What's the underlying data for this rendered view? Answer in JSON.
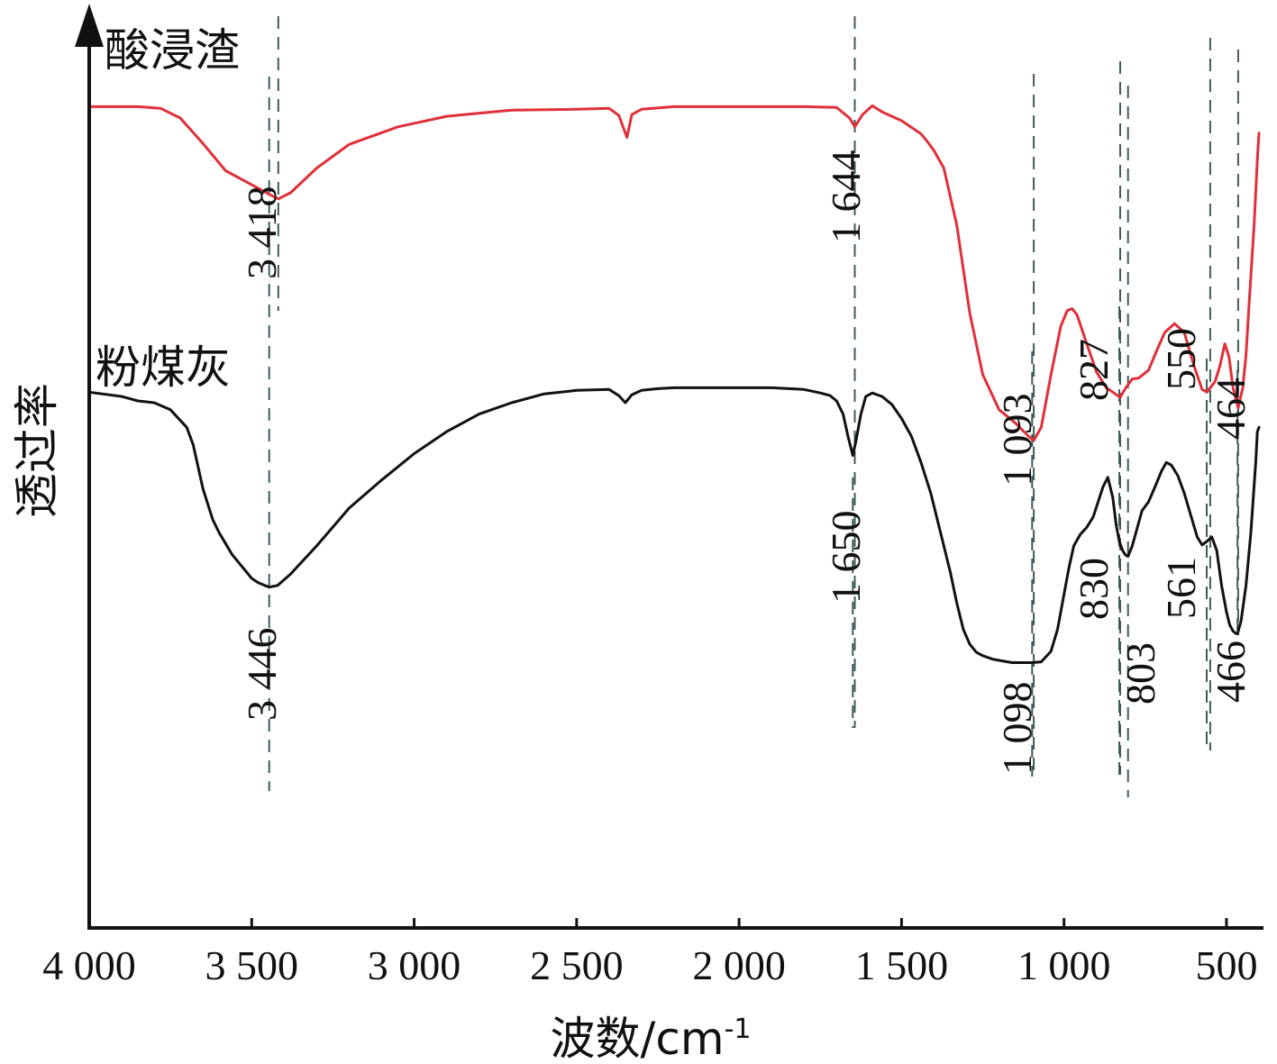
{
  "chart_data": {
    "type": "line",
    "xlabel": "波数/cm",
    "xlabel_sup": "-1",
    "ylabel": "透过率",
    "xlim": [
      4000,
      400
    ],
    "x_reversed": true,
    "x_ticks": [
      {
        "value": 4000,
        "label": "4 000"
      },
      {
        "value": 3500,
        "label": "3 500"
      },
      {
        "value": 3000,
        "label": "3 000"
      },
      {
        "value": 2500,
        "label": "2 500"
      },
      {
        "value": 2000,
        "label": "2 000"
      },
      {
        "value": 1500,
        "label": "1 500"
      },
      {
        "value": 1000,
        "label": "1 000"
      },
      {
        "value": 500,
        "label": "500"
      }
    ],
    "ylim": [
      0,
      100
    ],
    "y_ticks_shown": false,
    "grid": false,
    "legend": "none",
    "series": [
      {
        "name": "酸浸渣",
        "color": "#e0303a",
        "x": [
          4000,
          3850,
          3780,
          3720,
          3650,
          3580,
          3500,
          3450,
          3418,
          3380,
          3300,
          3200,
          3050,
          2900,
          2700,
          2500,
          2400,
          2370,
          2345,
          2330,
          2300,
          2200,
          2000,
          1800,
          1700,
          1660,
          1644,
          1620,
          1590,
          1560,
          1500,
          1440,
          1420,
          1400,
          1370,
          1330,
          1290,
          1250,
          1200,
          1150,
          1110,
          1093,
          1070,
          1040,
          1010,
          990,
          975,
          960,
          930,
          900,
          870,
          850,
          827,
          810,
          790,
          770,
          740,
          715,
          690,
          660,
          630,
          600,
          575,
          560,
          550,
          535,
          520,
          505,
          492,
          480,
          464,
          450,
          440,
          430,
          415,
          405,
          400
        ],
        "y": [
          93.5,
          93.5,
          93.3,
          92.2,
          89.3,
          86.2,
          84.6,
          83.6,
          83.0,
          83.7,
          86.5,
          89.2,
          91.2,
          92.4,
          93.1,
          93.2,
          93.3,
          92.5,
          90.0,
          92.6,
          93.2,
          93.5,
          93.5,
          93.5,
          93.4,
          92.2,
          91.2,
          92.6,
          93.6,
          92.9,
          91.9,
          90.4,
          89.5,
          88.5,
          86.5,
          80.0,
          70.0,
          63.0,
          59.0,
          57.5,
          56.0,
          55.5,
          57.0,
          63.0,
          68.5,
          70.3,
          70.5,
          69.8,
          66.5,
          63.3,
          61.5,
          61.0,
          60.4,
          61.5,
          62.5,
          62.6,
          63.5,
          65.7,
          67.8,
          68.8,
          67.8,
          64.0,
          61.3,
          61.0,
          61.5,
          62.2,
          64.0,
          66.5,
          65.0,
          61.5,
          59.2,
          61.5,
          65.2,
          71.3,
          80.0,
          87.5,
          90.5
        ]
      },
      {
        "name": "粉煤灰",
        "color": "#111111",
        "x": [
          4000,
          3900,
          3850,
          3800,
          3750,
          3700,
          3680,
          3650,
          3620,
          3600,
          3560,
          3520,
          3500,
          3480,
          3460,
          3446,
          3420,
          3380,
          3300,
          3200,
          3100,
          3000,
          2900,
          2800,
          2700,
          2600,
          2500,
          2400,
          2370,
          2350,
          2330,
          2300,
          2250,
          2200,
          2100,
          2000,
          1900,
          1800,
          1750,
          1720,
          1700,
          1680,
          1665,
          1650,
          1640,
          1625,
          1610,
          1590,
          1560,
          1530,
          1500,
          1470,
          1440,
          1410,
          1380,
          1350,
          1330,
          1310,
          1290,
          1270,
          1250,
          1220,
          1190,
          1160,
          1130,
          1098,
          1070,
          1040,
          1020,
          1000,
          985,
          970,
          950,
          930,
          910,
          895,
          880,
          865,
          850,
          840,
          830,
          820,
          812,
          803,
          790,
          775,
          760,
          740,
          720,
          700,
          685,
          670,
          650,
          630,
          610,
          590,
          575,
          561,
          545,
          530,
          515,
          500,
          490,
          480,
          470,
          466,
          455,
          440,
          425,
          410,
          405,
          400
        ],
        "y": [
          61.0,
          60.5,
          60.0,
          59.8,
          59.0,
          57.0,
          55.0,
          50.0,
          46.5,
          45.0,
          42.5,
          40.7,
          39.8,
          39.3,
          39.0,
          38.8,
          39.0,
          40.3,
          43.5,
          47.8,
          51.0,
          54.0,
          56.5,
          58.5,
          59.8,
          60.8,
          61.2,
          61.3,
          60.6,
          59.8,
          60.7,
          61.2,
          61.4,
          61.5,
          61.5,
          61.5,
          61.5,
          61.3,
          60.9,
          60.6,
          60.0,
          58.5,
          56.0,
          53.8,
          55.5,
          58.5,
          60.5,
          60.9,
          60.5,
          59.6,
          58.0,
          56.0,
          53.0,
          49.5,
          45.0,
          40.5,
          37.0,
          34.0,
          32.3,
          31.4,
          31.0,
          30.6,
          30.4,
          30.2,
          30.2,
          30.2,
          30.3,
          31.5,
          34.0,
          38.0,
          41.0,
          43.5,
          44.8,
          45.6,
          46.8,
          48.5,
          50.2,
          51.3,
          49.0,
          46.0,
          44.0,
          43.0,
          42.5,
          42.3,
          43.5,
          45.5,
          47.5,
          48.5,
          50.2,
          52.0,
          53.0,
          52.7,
          51.5,
          49.5,
          47.0,
          44.5,
          43.6,
          44.0,
          44.5,
          43.0,
          39.0,
          36.0,
          34.5,
          33.8,
          33.5,
          33.5,
          35.0,
          39.0,
          45.0,
          53.0,
          56.5,
          57.0
        ]
      }
    ],
    "series_labels": [
      "酸浸渣",
      "粉煤灰"
    ],
    "peak_markers": [
      {
        "x": 3418,
        "label": "3 418",
        "series": 0
      },
      {
        "x": 1644,
        "label": "1 644",
        "series": 0
      },
      {
        "x": 1093,
        "label": "1 093",
        "series": 0
      },
      {
        "x": 827,
        "label": "827",
        "series": 0
      },
      {
        "x": 550,
        "label": "550",
        "series": 0
      },
      {
        "x": 464,
        "label": "464",
        "series": 0
      },
      {
        "x": 3446,
        "label": "3 446",
        "series": 1
      },
      {
        "x": 1650,
        "label": "1 650",
        "series": 1
      },
      {
        "x": 1098,
        "label": "1 098",
        "series": 1
      },
      {
        "x": 830,
        "label": "830",
        "series": 1
      },
      {
        "x": 803,
        "label": "803",
        "series": 1
      },
      {
        "x": 561,
        "label": "561",
        "series": 1
      },
      {
        "x": 466,
        "label": "466",
        "series": 1
      }
    ]
  }
}
